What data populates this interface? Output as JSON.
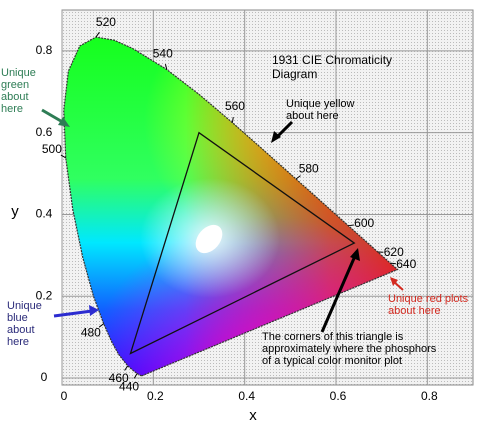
{
  "chart_data": {
    "type": "chromaticity",
    "title": "1931 CIE Chromaticity Diagram",
    "xlabel": "x",
    "ylabel": "y",
    "xlim": [
      0,
      0.9
    ],
    "ylim": [
      0,
      0.9
    ],
    "xticks": [
      0,
      0.2,
      0.4,
      0.6,
      0.8
    ],
    "yticks": [
      0,
      0.2,
      0.4,
      0.6,
      0.8
    ],
    "grid": true,
    "locus": {
      "x": [
        0.1741,
        0.1644,
        0.1566,
        0.144,
        0.1241,
        0.1096,
        0.0913,
        0.0687,
        0.0454,
        0.0235,
        0.0082,
        0.0039,
        0.0139,
        0.0389,
        0.0743,
        0.1142,
        0.1547,
        0.2296,
        0.3016,
        0.3731,
        0.4441,
        0.5125,
        0.5752,
        0.627,
        0.6915,
        0.719,
        0.7347
      ],
      "y": [
        0.005,
        0.0109,
        0.0177,
        0.0297,
        0.0578,
        0.0868,
        0.1327,
        0.2007,
        0.295,
        0.4127,
        0.5384,
        0.6548,
        0.7502,
        0.812,
        0.8338,
        0.8262,
        0.8059,
        0.7543,
        0.6923,
        0.6245,
        0.5547,
        0.4866,
        0.4242,
        0.3725,
        0.3083,
        0.2809,
        0.2653
      ],
      "labels": [
        null,
        "440",
        null,
        "460",
        null,
        null,
        "480",
        null,
        null,
        null,
        "500",
        null,
        null,
        null,
        "520",
        null,
        null,
        "540",
        null,
        "560",
        null,
        "580",
        null,
        "600",
        "620",
        "640",
        null
      ]
    },
    "triangle": {
      "x": [
        0.64,
        0.3,
        0.15
      ],
      "y": [
        0.33,
        0.6,
        0.06
      ]
    },
    "annotations": [
      {
        "text": "Unique green about here",
        "color": "#2e7d55"
      },
      {
        "text": "Unique yellow about here",
        "color": "#000000"
      },
      {
        "text": "Unique blue about here",
        "color": "#2b2b7a"
      },
      {
        "text": "Unique red plots about here",
        "color": "#d42a20"
      },
      {
        "text": "The corners of this triangle is approximately where the phosphors of a typical color monitor plot",
        "color": "#000000"
      }
    ]
  }
}
